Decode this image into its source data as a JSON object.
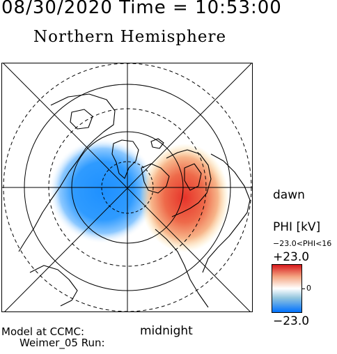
{
  "header": {
    "title_line": "08/30/2020 Time = 10:53:00",
    "hemisphere": "Northern Hemisphere"
  },
  "map": {
    "orientation_labels": {
      "dawn": "dawn",
      "midnight": "midnight"
    },
    "grid": {
      "solid_circles": true,
      "dashed_circles": true,
      "meridian_lines": 8
    },
    "potential_cells": [
      {
        "sign": "negative",
        "color": "#1e90ff",
        "side": "dusk"
      },
      {
        "sign": "positive",
        "color": "#e34a33",
        "side": "dawn"
      }
    ]
  },
  "footer": {
    "model_line": "Model at CCMC:",
    "run_line": "Weimer_05 Run:"
  },
  "legend": {
    "quantity": "PHI [kV]",
    "range_text": "−23.0<PHI<16",
    "max": "+23.0",
    "zero": "0",
    "min": "−23.0",
    "colors": {
      "max": "#d7191c",
      "mid": "#ffffff",
      "min": "#0072ff"
    }
  }
}
